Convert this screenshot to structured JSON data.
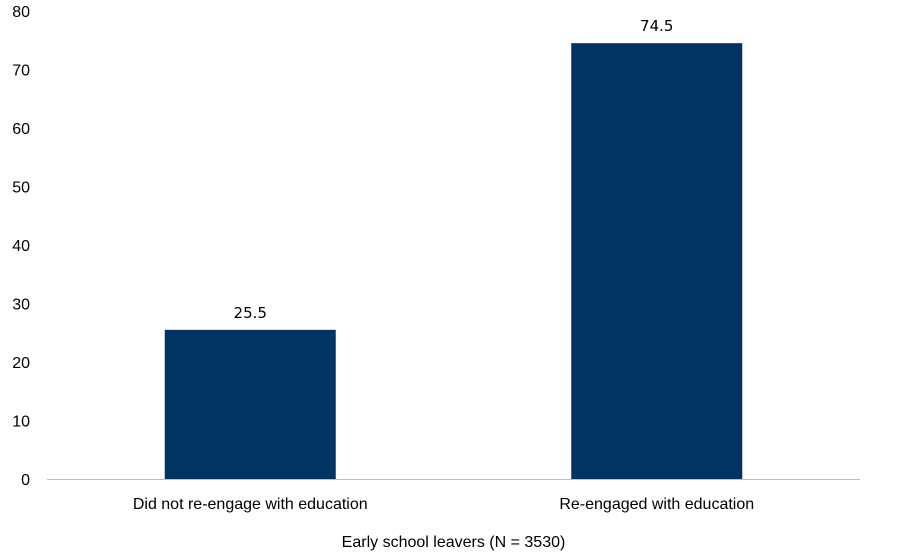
{
  "chart_data": {
    "type": "bar",
    "title": "",
    "xlabel": "Early school leavers (N = 3530)",
    "ylabel": "",
    "categories": [
      "Did not re-engage with education",
      "Re-engaged with education"
    ],
    "values": [
      25.5,
      74.5
    ],
    "data_labels": [
      "25.5",
      "74.5"
    ],
    "ylim": [
      0,
      80
    ],
    "yticks": [
      0,
      10,
      20,
      30,
      40,
      50,
      60,
      70,
      80
    ],
    "ytick_labels": [
      "0",
      "10",
      "20",
      "30",
      "40",
      "50",
      "60",
      "70",
      "80"
    ],
    "grid": false,
    "legend": "none",
    "colors": {
      "bar": "#003462",
      "axis": "#bfbfbf"
    }
  }
}
